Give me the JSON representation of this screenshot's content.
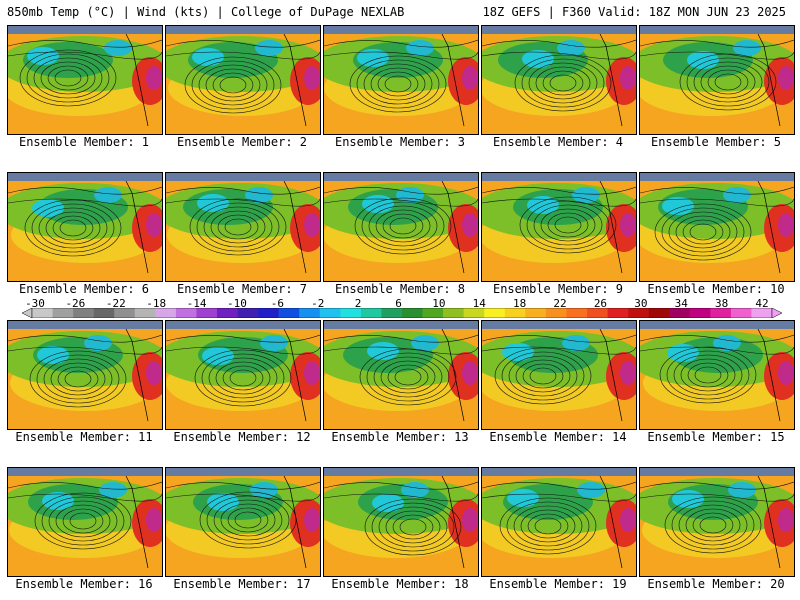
{
  "header": {
    "left": "850mb Temp (°C) | Wind (kts) | College of DuPage NEXLAB",
    "right": "18Z GEFS | F360 Valid: 18Z MON JUN 23 2025"
  },
  "colorbar": {
    "ticks": [
      "-30",
      "-26",
      "-22",
      "-18",
      "-14",
      "-10",
      "-6",
      "-2",
      "2",
      "6",
      "10",
      "14",
      "18",
      "22",
      "26",
      "30",
      "34",
      "38",
      "42"
    ],
    "colors": [
      "#c8c8c8",
      "#a0a0a0",
      "#808080",
      "#686868",
      "#909090",
      "#b4b4b4",
      "#d6a6e8",
      "#c070e0",
      "#a040d0",
      "#7020c0",
      "#4020b0",
      "#2020c8",
      "#1050e0",
      "#1890f0",
      "#20c0f0",
      "#20e0e0",
      "#20c8a0",
      "#20a060",
      "#289030",
      "#50a820",
      "#90c020",
      "#c8d820",
      "#f8f020",
      "#f8d020",
      "#f8b020",
      "#f89020",
      "#f87020",
      "#f05020",
      "#e02020",
      "#c01010",
      "#a00808",
      "#a00060",
      "#c00080",
      "#e020a0",
      "#f060d0",
      "#f0a0f0"
    ]
  },
  "panels": [
    {
      "caption": "Ensemble Member: 1"
    },
    {
      "caption": "Ensemble Member: 2"
    },
    {
      "caption": "Ensemble Member: 3"
    },
    {
      "caption": "Ensemble Member: 4"
    },
    {
      "caption": "Ensemble Member: 5"
    },
    {
      "caption": "Ensemble Member: 6"
    },
    {
      "caption": "Ensemble Member: 7"
    },
    {
      "caption": "Ensemble Member: 8"
    },
    {
      "caption": "Ensemble Member: 9"
    },
    {
      "caption": "Ensemble Member: 10"
    },
    {
      "caption": "Ensemble Member: 11"
    },
    {
      "caption": "Ensemble Member: 12"
    },
    {
      "caption": "Ensemble Member: 13"
    },
    {
      "caption": "Ensemble Member: 14"
    },
    {
      "caption": "Ensemble Member: 15"
    },
    {
      "caption": "Ensemble Member: 16"
    },
    {
      "caption": "Ensemble Member: 17"
    },
    {
      "caption": "Ensemble Member: 18"
    },
    {
      "caption": "Ensemble Member: 19"
    },
    {
      "caption": "Ensemble Member: 20"
    }
  ]
}
